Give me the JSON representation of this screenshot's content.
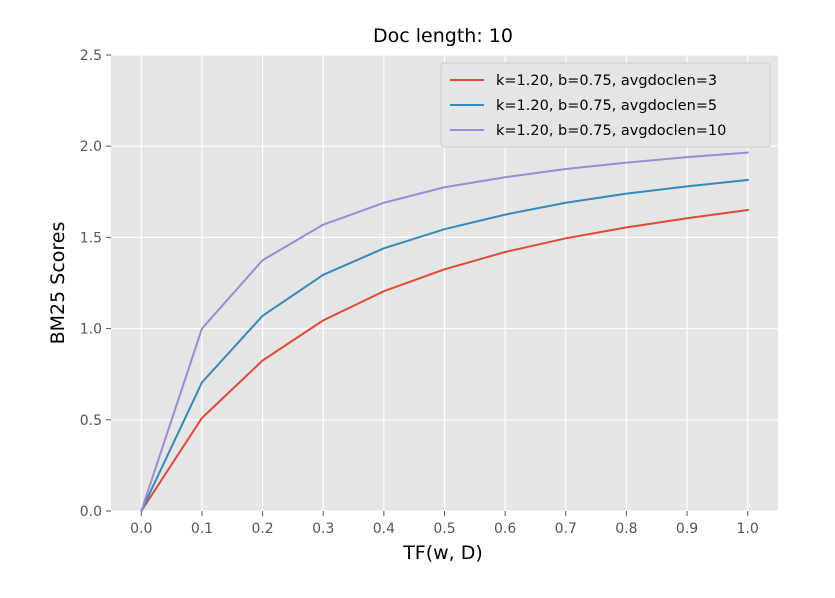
{
  "chart_data": {
    "type": "line",
    "title": "Doc length: 10",
    "xlabel": "TF(w, D)",
    "ylabel": "BM25 Scores",
    "xlim": [
      -0.05,
      1.05
    ],
    "ylim": [
      0,
      2.5
    ],
    "x": [
      0.0,
      0.1,
      0.2,
      0.3,
      0.4,
      0.5,
      0.6,
      0.7,
      0.8,
      0.9,
      1.0
    ],
    "xticks": [
      "0.0",
      "0.1",
      "0.2",
      "0.3",
      "0.4",
      "0.5",
      "0.6",
      "0.7",
      "0.8",
      "0.9",
      "1.0"
    ],
    "yticks": [
      "0.0",
      "0.5",
      "1.0",
      "1.5",
      "2.0",
      "2.5"
    ],
    "grid": true,
    "legend_position": "top-right",
    "series": [
      {
        "name": "k=1.20, b=0.75, avgdoclen=3",
        "color": "#E24A33",
        "values": [
          0.0,
          0.51,
          0.825,
          1.045,
          1.205,
          1.325,
          1.42,
          1.495,
          1.555,
          1.605,
          1.65
        ]
      },
      {
        "name": "k=1.20, b=0.75, avgdoclen=5",
        "color": "#348ABD",
        "values": [
          0.0,
          0.705,
          1.07,
          1.295,
          1.44,
          1.545,
          1.625,
          1.69,
          1.74,
          1.78,
          1.815
        ]
      },
      {
        "name": "k=1.20, b=0.75, avgdoclen=10",
        "color": "#988ED5",
        "values": [
          0.0,
          1.0,
          1.375,
          1.57,
          1.69,
          1.775,
          1.83,
          1.875,
          1.91,
          1.94,
          1.965
        ]
      }
    ]
  }
}
